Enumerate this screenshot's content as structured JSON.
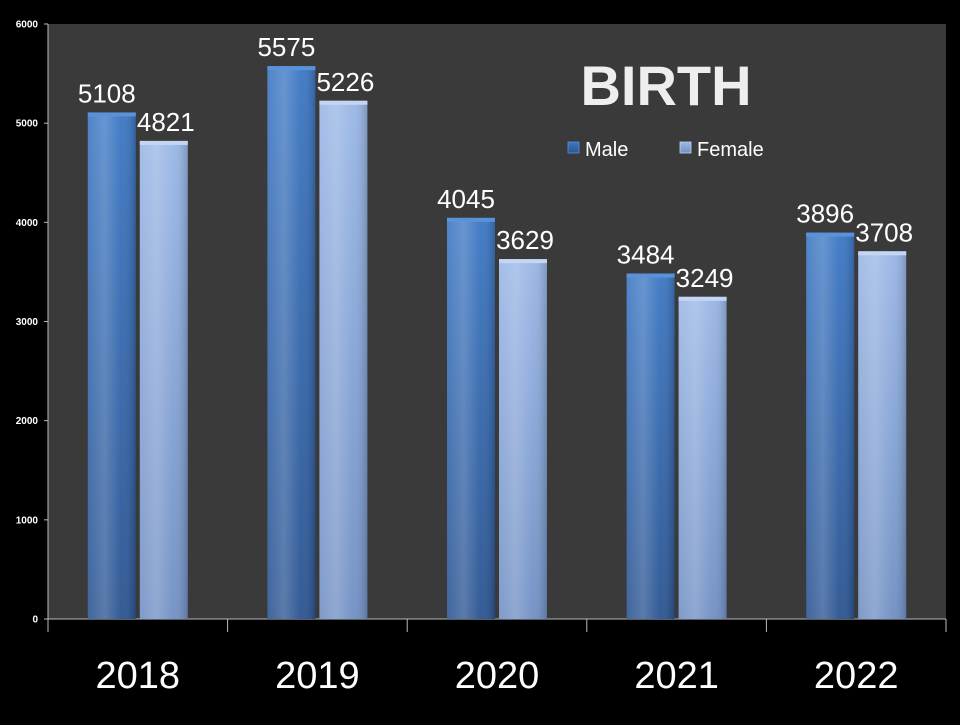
{
  "chart_data": {
    "type": "bar",
    "title": "BIRTH",
    "categories": [
      "2018",
      "2019",
      "2020",
      "2021",
      "2022"
    ],
    "series": [
      {
        "name": "Male",
        "values": [
          5108,
          5575,
          4045,
          3484,
          3896
        ],
        "color": "#3a6fb5"
      },
      {
        "name": "Female",
        "values": [
          4821,
          5226,
          3629,
          3249,
          3708
        ],
        "color": "#91aee0"
      }
    ],
    "ylim": [
      0,
      6000
    ],
    "yticks": [
      "0",
      "1000",
      "2000",
      "3000",
      "4000",
      "5000",
      "6000"
    ],
    "xlabel": "",
    "ylabel": "",
    "legend_position": "top-right",
    "grid": false,
    "plot_background": "#3a3a3a",
    "page_background": "#000000",
    "text_color": "#ffffff"
  }
}
